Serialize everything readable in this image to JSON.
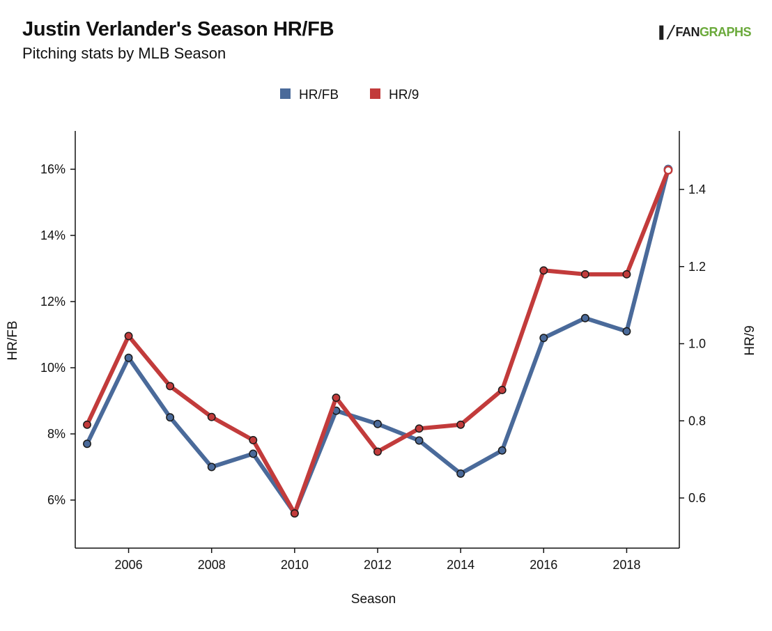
{
  "header": {
    "title": "Justin Verlander's Season HR/FB",
    "subtitle": "Pitching stats by MLB Season"
  },
  "logo": {
    "text_fan": "FAN",
    "text_graphs": "GRAPHS",
    "color_brand": "#6aa93a"
  },
  "chart_data": {
    "type": "line",
    "title": "Justin Verlander's Season HR/FB",
    "subtitle": "Pitching stats by MLB Season",
    "xlabel": "Season",
    "ylabel_left": "HR/FB",
    "ylabel_right": "HR/9",
    "legend_position": "top-center",
    "grid": false,
    "x": [
      2005,
      2006,
      2007,
      2008,
      2009,
      2010,
      2011,
      2012,
      2013,
      2014,
      2015,
      2016,
      2017,
      2018,
      2019
    ],
    "x_ticks": [
      2006,
      2008,
      2010,
      2012,
      2014,
      2016,
      2018
    ],
    "x_tick_labels": [
      "2006",
      "2008",
      "2010",
      "2012",
      "2014",
      "2016",
      "2018"
    ],
    "xlim": [
      2005,
      2019
    ],
    "y_left": {
      "lim": [
        4.5,
        17.0
      ],
      "ticks": [
        6,
        8,
        10,
        12,
        14,
        16
      ],
      "tick_labels": [
        "6%",
        "8%",
        "10%",
        "12%",
        "14%",
        "16%"
      ]
    },
    "y_right": {
      "lim": [
        0.47,
        1.55
      ],
      "ticks": [
        0.6,
        0.8,
        1.0,
        1.2,
        1.4
      ],
      "tick_labels": [
        "0.6",
        "0.8",
        "1.0",
        "1.2",
        "1.4"
      ]
    },
    "series": [
      {
        "name": "HR/FB",
        "axis": "left",
        "color": "#4a6a9a",
        "values": [
          7.7,
          10.3,
          8.5,
          7.0,
          7.4,
          5.6,
          8.7,
          8.3,
          7.8,
          6.8,
          7.5,
          10.9,
          11.5,
          11.1,
          16.0
        ]
      },
      {
        "name": "HR/9",
        "axis": "right",
        "color": "#c23b3b",
        "values": [
          0.79,
          1.02,
          0.89,
          0.81,
          0.75,
          0.56,
          0.86,
          0.72,
          0.78,
          0.79,
          0.88,
          1.19,
          1.18,
          1.18,
          1.45
        ]
      }
    ]
  }
}
